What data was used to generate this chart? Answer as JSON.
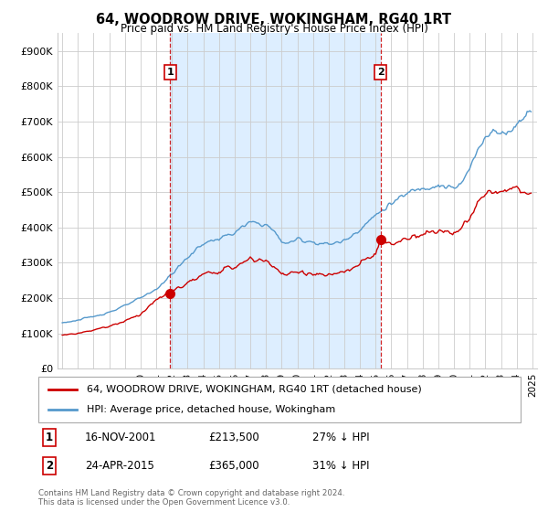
{
  "title": "64, WOODROW DRIVE, WOKINGHAM, RG40 1RT",
  "subtitle": "Price paid vs. HM Land Registry's House Price Index (HPI)",
  "ylabel_ticks": [
    "£0",
    "£100K",
    "£200K",
    "£300K",
    "£400K",
    "£500K",
    "£600K",
    "£700K",
    "£800K",
    "£900K"
  ],
  "ytick_values": [
    0,
    100000,
    200000,
    300000,
    400000,
    500000,
    600000,
    700000,
    800000,
    900000
  ],
  "ylim": [
    0,
    950000
  ],
  "xlim_start": 1994.7,
  "xlim_end": 2025.3,
  "legend_line1": "64, WOODROW DRIVE, WOKINGHAM, RG40 1RT (detached house)",
  "legend_line2": "HPI: Average price, detached house, Wokingham",
  "transaction1_label": "1",
  "transaction1_date": "16-NOV-2001",
  "transaction1_price": "£213,500",
  "transaction1_hpi": "27% ↓ HPI",
  "transaction1_x": 2001.88,
  "transaction1_y": 213500,
  "transaction2_label": "2",
  "transaction2_date": "24-APR-2015",
  "transaction2_price": "£365,000",
  "transaction2_hpi": "31% ↓ HPI",
  "transaction2_x": 2015.32,
  "transaction2_y": 365000,
  "line_color_red": "#cc0000",
  "line_color_blue": "#5599cc",
  "shade_color": "#ddeeff",
  "vline_color": "#cc0000",
  "grid_color": "#cccccc",
  "footer_text": "Contains HM Land Registry data © Crown copyright and database right 2024.\nThis data is licensed under the Open Government Licence v3.0.",
  "background_color": "#ffffff"
}
